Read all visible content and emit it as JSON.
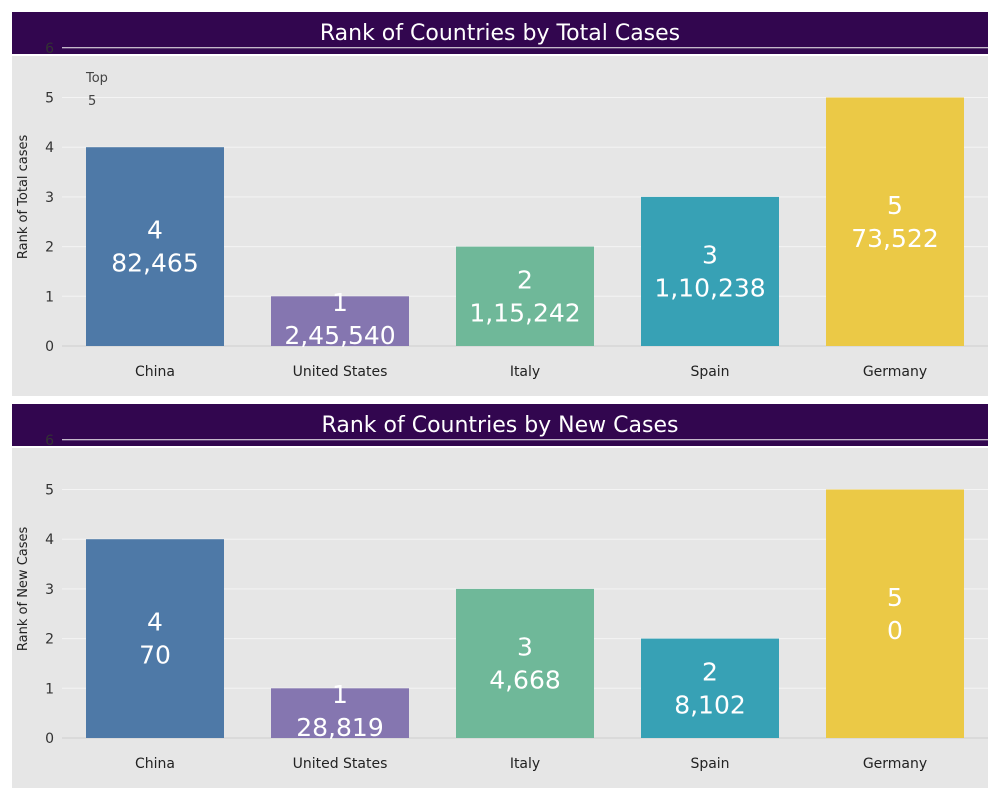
{
  "chart_data": [
    {
      "type": "bar",
      "title": "Rank of Countries by Total Cases",
      "ylabel": "Rank of Total cases",
      "ylim": [
        0,
        6
      ],
      "yticks": [
        0,
        1,
        2,
        3,
        4,
        5,
        6
      ],
      "grid": true,
      "annotation": [
        "Top",
        "5"
      ],
      "categories": [
        "China",
        "United States",
        "Italy",
        "Spain",
        "Germany"
      ],
      "values": [
        4,
        1,
        2,
        3,
        5
      ],
      "bar_labels": [
        "82,465",
        "2,45,540",
        "1,15,242",
        "1,10,238",
        "73,522"
      ],
      "colors": [
        "#4e79a7",
        "#8576b0",
        "#6fb899",
        "#37a1b5",
        "#ebc946"
      ]
    },
    {
      "type": "bar",
      "title": "Rank of Countries by New Cases",
      "ylabel": "Rank of New Cases",
      "ylim": [
        0,
        6
      ],
      "yticks": [
        0,
        1,
        2,
        3,
        4,
        5,
        6
      ],
      "grid": true,
      "categories": [
        "China",
        "United States",
        "Italy",
        "Spain",
        "Germany"
      ],
      "values": [
        4,
        1,
        3,
        2,
        5
      ],
      "bar_labels": [
        "70",
        "28,819",
        "4,668",
        "8,102",
        "0"
      ],
      "colors": [
        "#4e79a7",
        "#8576b0",
        "#6fb899",
        "#37a1b5",
        "#ebc946"
      ]
    }
  ]
}
